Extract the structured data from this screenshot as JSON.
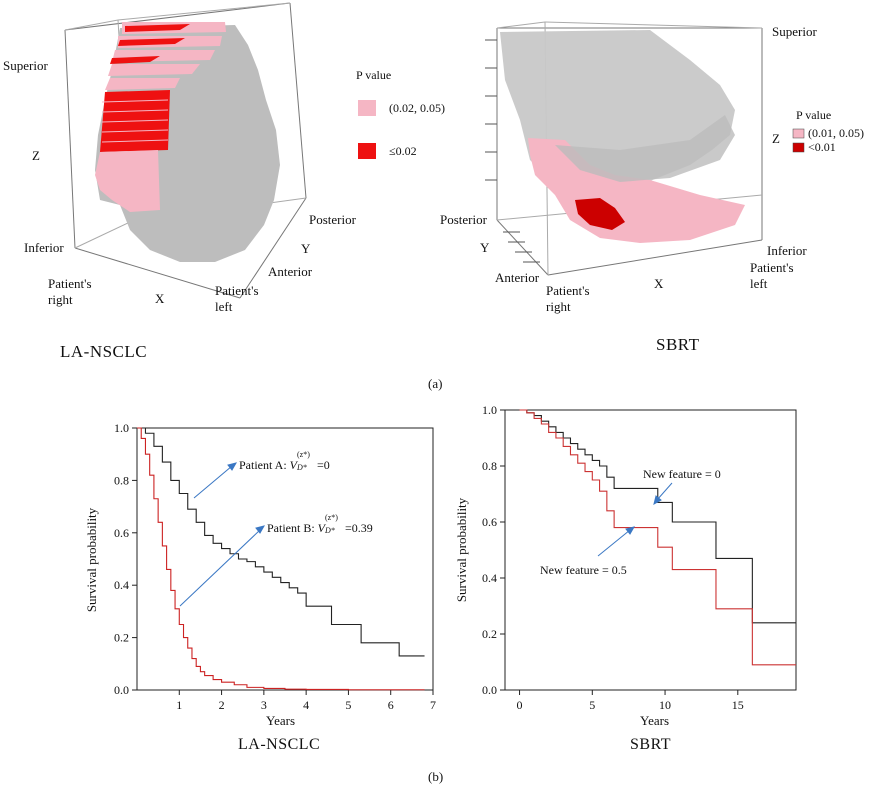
{
  "panel_a": {
    "caption": "(a)",
    "left": {
      "title": "LA-NSCLC",
      "labels": {
        "superior": "Superior",
        "z": "Z",
        "inferior": "Inferior",
        "patients_right_1": "Patient's",
        "patients_right_2": "right",
        "x": "X",
        "patients_left_1": "Patient's",
        "patients_left_2": "left",
        "anterior": "Anterior",
        "y": "Y",
        "posterior": "Posterior"
      },
      "legend": {
        "title": "P value",
        "items": [
          {
            "label": "(0.02, 0.05)",
            "color": "#f5b6c4"
          },
          {
            "label": "≤0.02",
            "color": "#ee1111"
          }
        ]
      }
    },
    "right": {
      "title": "SBRT",
      "labels": {
        "superior": "Superior",
        "z": "Z",
        "inferior": "Inferior",
        "posterior": "Posterior",
        "y": "Y",
        "anterior": "Anterior",
        "patients_right_1": "Patient's",
        "patients_right_2": "right",
        "x": "X",
        "patients_left_1": "Patient's",
        "patients_left_2": "left"
      },
      "legend": {
        "title": "P value",
        "items": [
          {
            "label": "(0.01, 0.05)",
            "color": "#f5b6c4"
          },
          {
            "label": "<0.01",
            "color": "#cc0000"
          }
        ]
      }
    }
  },
  "panel_b": {
    "caption": "(b)",
    "left_title": "LA-NSCLC",
    "right_title": "SBRT",
    "annotations": {
      "patient_a_prefix": "Patient A: ",
      "patient_a_v": "V",
      "patient_a_sub": "D*",
      "patient_a_sup": "(z*)",
      "patient_a_val": "=0",
      "patient_b_prefix": "Patient B: ",
      "patient_b_v": "V",
      "patient_b_sub": "D*",
      "patient_b_sup": "(z*)",
      "patient_b_val": "=0.39",
      "new_feature_0": "New feature = 0",
      "new_feature_05": "New feature = 0.5"
    }
  },
  "chart_data": [
    {
      "type": "line",
      "xlabel": "Years",
      "ylabel": "Survival probability",
      "xlim": [
        0,
        7
      ],
      "ylim": [
        0,
        1.0
      ],
      "xticks": [
        1,
        2,
        3,
        4,
        5,
        6,
        7
      ],
      "yticks": [
        0.0,
        0.2,
        0.4,
        0.6,
        0.8,
        1.0
      ],
      "series": [
        {
          "color": "#222222",
          "x": [
            0,
            0.2,
            0.4,
            0.6,
            0.8,
            1.0,
            1.2,
            1.4,
            1.6,
            1.8,
            2.0,
            2.2,
            2.4,
            2.6,
            2.8,
            3.0,
            3.2,
            3.4,
            3.6,
            3.8,
            4.0,
            4.3,
            4.6,
            5.0,
            5.3,
            5.6,
            6.0,
            6.2,
            6.8
          ],
          "y": [
            1.0,
            0.98,
            0.93,
            0.87,
            0.8,
            0.75,
            0.69,
            0.64,
            0.59,
            0.56,
            0.54,
            0.52,
            0.5,
            0.49,
            0.47,
            0.45,
            0.43,
            0.41,
            0.39,
            0.37,
            0.32,
            0.32,
            0.25,
            0.25,
            0.18,
            0.18,
            0.18,
            0.13,
            0.13
          ]
        },
        {
          "color": "#cc2222",
          "x": [
            0,
            0.1,
            0.2,
            0.3,
            0.4,
            0.5,
            0.6,
            0.7,
            0.8,
            0.9,
            1.0,
            1.1,
            1.2,
            1.3,
            1.4,
            1.5,
            1.6,
            1.8,
            2.0,
            2.3,
            2.6,
            3.0,
            3.5,
            4.0,
            5.0,
            6.0,
            6.8
          ],
          "y": [
            1.0,
            0.96,
            0.9,
            0.82,
            0.73,
            0.64,
            0.55,
            0.46,
            0.38,
            0.31,
            0.25,
            0.2,
            0.16,
            0.12,
            0.09,
            0.07,
            0.055,
            0.04,
            0.03,
            0.02,
            0.01,
            0.006,
            0.003,
            0.002,
            0.001,
            0.001,
            0.001
          ]
        }
      ]
    },
    {
      "type": "line",
      "xlabel": "Years",
      "ylabel": "Survival probability",
      "xlim": [
        -1,
        19
      ],
      "ylim": [
        0,
        1.0
      ],
      "xticks": [
        0,
        5,
        10,
        15
      ],
      "yticks": [
        0.0,
        0.2,
        0.4,
        0.6,
        0.8,
        1.0
      ],
      "series": [
        {
          "color": "#222222",
          "x": [
            0,
            0.5,
            1.0,
            1.5,
            2.0,
            2.5,
            3.0,
            3.5,
            4.0,
            4.5,
            5.0,
            5.5,
            6.0,
            6.5,
            9.5,
            10.5,
            13.5,
            16.0,
            19.0
          ],
          "y": [
            1.0,
            0.99,
            0.98,
            0.96,
            0.94,
            0.92,
            0.9,
            0.88,
            0.86,
            0.84,
            0.82,
            0.8,
            0.76,
            0.72,
            0.67,
            0.6,
            0.47,
            0.24,
            0.24
          ]
        },
        {
          "color": "#cc3333",
          "x": [
            0,
            0.5,
            1.0,
            1.5,
            2.0,
            2.5,
            3.0,
            3.5,
            4.0,
            4.5,
            5.0,
            5.5,
            6.0,
            6.5,
            9.5,
            10.5,
            13.5,
            16.0,
            19.0
          ],
          "y": [
            1.0,
            0.99,
            0.97,
            0.95,
            0.92,
            0.9,
            0.87,
            0.84,
            0.81,
            0.78,
            0.75,
            0.71,
            0.64,
            0.58,
            0.51,
            0.43,
            0.29,
            0.09,
            0.09
          ]
        }
      ]
    }
  ]
}
